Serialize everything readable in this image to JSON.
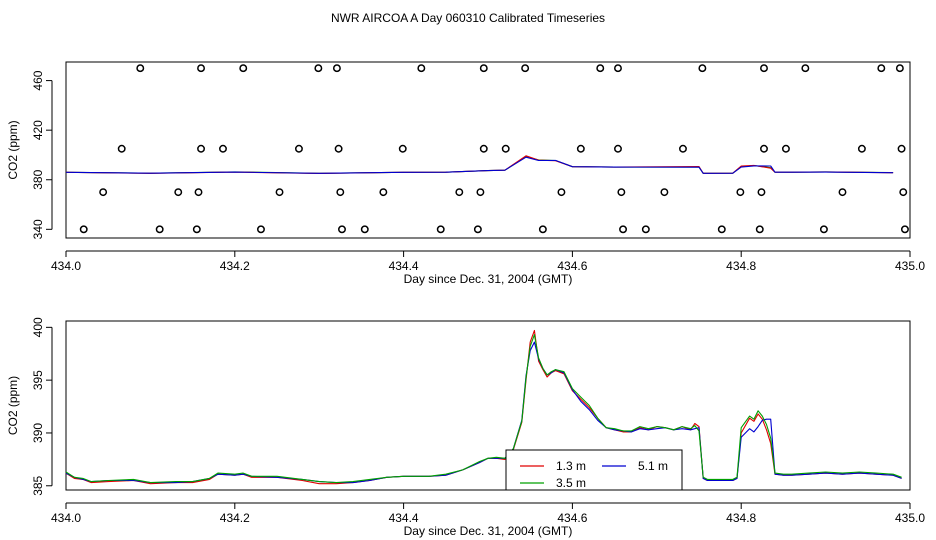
{
  "title": "NWR AIRCOA A  Day 060310  Calibrated Timeseries",
  "colors": {
    "red": "#e00000",
    "green": "#00a000",
    "blue": "#0000d0",
    "frame": "#000000"
  },
  "chart_data": [
    {
      "type": "scatter",
      "xlabel": "Day since Dec. 31, 2004 (GMT)",
      "ylabel": "CO2 (ppm)",
      "xlim": [
        434.0,
        435.0
      ],
      "ylim": [
        333,
        475
      ],
      "xticks": [
        "434.0",
        "434.2",
        "434.4",
        "434.6",
        "434.8",
        "435.0"
      ],
      "yticks": [
        "340",
        "380",
        "420",
        "460"
      ],
      "tick_values": [
        340,
        380,
        420,
        460
      ],
      "x_tick_values": [
        434.0,
        434.2,
        434.4,
        434.6,
        434.8,
        435.0
      ],
      "reference_points": [
        {
          "x": 434.088,
          "y": 470
        },
        {
          "x": 434.16,
          "y": 470
        },
        {
          "x": 434.21,
          "y": 470
        },
        {
          "x": 434.299,
          "y": 470
        },
        {
          "x": 434.321,
          "y": 470
        },
        {
          "x": 434.421,
          "y": 470
        },
        {
          "x": 434.495,
          "y": 470
        },
        {
          "x": 434.544,
          "y": 470
        },
        {
          "x": 434.633,
          "y": 470
        },
        {
          "x": 434.654,
          "y": 470
        },
        {
          "x": 434.754,
          "y": 470
        },
        {
          "x": 434.827,
          "y": 470
        },
        {
          "x": 434.876,
          "y": 470
        },
        {
          "x": 434.966,
          "y": 470
        },
        {
          "x": 434.988,
          "y": 470
        },
        {
          "x": 434.066,
          "y": 405
        },
        {
          "x": 434.16,
          "y": 405
        },
        {
          "x": 434.186,
          "y": 405
        },
        {
          "x": 434.276,
          "y": 405
        },
        {
          "x": 434.323,
          "y": 405
        },
        {
          "x": 434.399,
          "y": 405
        },
        {
          "x": 434.495,
          "y": 405
        },
        {
          "x": 434.521,
          "y": 405
        },
        {
          "x": 434.61,
          "y": 405
        },
        {
          "x": 434.654,
          "y": 405
        },
        {
          "x": 434.731,
          "y": 405
        },
        {
          "x": 434.827,
          "y": 405
        },
        {
          "x": 434.853,
          "y": 405
        },
        {
          "x": 434.943,
          "y": 405
        },
        {
          "x": 434.99,
          "y": 405
        },
        {
          "x": 434.044,
          "y": 370
        },
        {
          "x": 434.133,
          "y": 370
        },
        {
          "x": 434.157,
          "y": 370
        },
        {
          "x": 434.253,
          "y": 370
        },
        {
          "x": 434.325,
          "y": 370
        },
        {
          "x": 434.376,
          "y": 370
        },
        {
          "x": 434.466,
          "y": 370
        },
        {
          "x": 434.491,
          "y": 370
        },
        {
          "x": 434.587,
          "y": 370
        },
        {
          "x": 434.658,
          "y": 370
        },
        {
          "x": 434.709,
          "y": 370
        },
        {
          "x": 434.799,
          "y": 370
        },
        {
          "x": 434.824,
          "y": 370
        },
        {
          "x": 434.92,
          "y": 370
        },
        {
          "x": 434.992,
          "y": 370
        },
        {
          "x": 434.021,
          "y": 340
        },
        {
          "x": 434.111,
          "y": 340
        },
        {
          "x": 434.155,
          "y": 340
        },
        {
          "x": 434.231,
          "y": 340
        },
        {
          "x": 434.327,
          "y": 340
        },
        {
          "x": 434.354,
          "y": 340
        },
        {
          "x": 434.444,
          "y": 340
        },
        {
          "x": 434.488,
          "y": 340
        },
        {
          "x": 434.565,
          "y": 340
        },
        {
          "x": 434.66,
          "y": 340
        },
        {
          "x": 434.687,
          "y": 340
        },
        {
          "x": 434.777,
          "y": 340
        },
        {
          "x": 434.822,
          "y": 340
        },
        {
          "x": 434.898,
          "y": 340
        },
        {
          "x": 434.994,
          "y": 340
        }
      ],
      "series": [
        {
          "color": "green",
          "x": [
            434.0,
            434.1,
            434.2,
            434.3,
            434.4,
            434.45,
            434.5,
            434.52,
            434.545,
            434.56,
            434.58,
            434.6,
            434.65,
            434.75,
            434.755,
            434.79,
            434.8,
            434.815,
            434.835,
            434.84,
            434.86,
            434.9,
            434.98
          ],
          "y": [
            386,
            385.3,
            386.3,
            385.2,
            386,
            386.1,
            387.4,
            387.7,
            398.5,
            396,
            395.5,
            390.5,
            390.2,
            390.2,
            385.2,
            385.3,
            390.5,
            391.5,
            389.7,
            386.1,
            386.1,
            386.3,
            385.8
          ]
        },
        {
          "color": "red",
          "x": [
            434.0,
            434.1,
            434.2,
            434.3,
            434.4,
            434.45,
            434.5,
            434.52,
            434.545,
            434.56,
            434.58,
            434.6,
            434.65,
            434.75,
            434.755,
            434.79,
            434.8,
            434.815,
            434.835,
            434.84,
            434.86,
            434.9,
            434.98
          ],
          "y": [
            386,
            385.2,
            386.2,
            385.1,
            386,
            386.1,
            387.4,
            387.7,
            399.3,
            395.8,
            395.4,
            390.5,
            390.2,
            390.6,
            385.2,
            385.3,
            391,
            391.6,
            389.3,
            386.1,
            386.1,
            386.3,
            385.7
          ]
        },
        {
          "color": "blue",
          "x": [
            434.0,
            434.1,
            434.2,
            434.3,
            434.4,
            434.45,
            434.5,
            434.52,
            434.545,
            434.56,
            434.58,
            434.6,
            434.65,
            434.75,
            434.755,
            434.79,
            434.8,
            434.815,
            434.835,
            434.84,
            434.86,
            434.9,
            434.98
          ],
          "y": [
            386,
            385.3,
            386.2,
            385.2,
            386,
            386.1,
            387.4,
            387.7,
            398.2,
            395.5,
            395.6,
            390.5,
            390.2,
            390.1,
            385.2,
            385.3,
            390.2,
            391.2,
            391.1,
            386.1,
            386.1,
            386.2,
            385.7
          ]
        }
      ]
    },
    {
      "type": "line",
      "xlabel": "Day since Dec. 31, 2004 (GMT)",
      "ylabel": "CO2 (ppm)",
      "xlim": [
        434.0,
        435.0
      ],
      "ylim": [
        384.6,
        400.6
      ],
      "xticks": [
        "434.0",
        "434.2",
        "434.4",
        "434.6",
        "434.8",
        "435.0"
      ],
      "x_tick_values": [
        434.0,
        434.2,
        434.4,
        434.6,
        434.8,
        435.0
      ],
      "yticks": [
        "385",
        "390",
        "395",
        "400"
      ],
      "tick_values": [
        385,
        390,
        395,
        400
      ],
      "legend": {
        "position": "bottom-center",
        "entries": [
          {
            "label": "1.3 m",
            "color": "red"
          },
          {
            "label": "5.1 m",
            "color": "blue"
          },
          {
            "label": "3.5 m",
            "color": "green"
          }
        ]
      },
      "series": [
        {
          "name": "1.3 m",
          "color": "red",
          "x": [
            434.0,
            434.01,
            434.02,
            434.03,
            434.05,
            434.08,
            434.1,
            434.13,
            434.15,
            434.17,
            434.18,
            434.2,
            434.21,
            434.22,
            434.25,
            434.28,
            434.3,
            434.32,
            434.34,
            434.36,
            434.38,
            434.4,
            434.43,
            434.45,
            434.47,
            434.49,
            434.5,
            434.51,
            434.52,
            434.53,
            434.54,
            434.545,
            434.55,
            434.555,
            434.56,
            434.565,
            434.57,
            434.575,
            434.58,
            434.59,
            434.6,
            434.61,
            434.62,
            434.63,
            434.64,
            434.65,
            434.66,
            434.67,
            434.68,
            434.69,
            434.7,
            434.71,
            434.72,
            434.73,
            434.74,
            434.745,
            434.75,
            434.755,
            434.76,
            434.77,
            434.78,
            434.79,
            434.795,
            434.8,
            434.81,
            434.815,
            434.82,
            434.825,
            434.83,
            434.835,
            434.84,
            434.85,
            434.86,
            434.88,
            434.9,
            434.92,
            434.94,
            434.96,
            434.98,
            434.99
          ],
          "y": [
            386.2,
            385.7,
            385.6,
            385.3,
            385.4,
            385.5,
            385.2,
            385.3,
            385.3,
            385.6,
            386.1,
            386.0,
            386.1,
            385.8,
            385.8,
            385.5,
            385.2,
            385.2,
            385.3,
            385.5,
            385.8,
            385.9,
            385.9,
            386.0,
            386.5,
            387.2,
            387.6,
            387.6,
            387.5,
            388.4,
            391.0,
            395.0,
            398.6,
            399.7,
            396.8,
            396.0,
            395.3,
            395.7,
            395.9,
            395.6,
            394.0,
            393.2,
            392.4,
            391.4,
            390.5,
            390.3,
            390.1,
            390.1,
            390.5,
            390.3,
            390.6,
            390.5,
            390.3,
            390.6,
            390.3,
            390.9,
            390.6,
            385.7,
            385.5,
            385.5,
            385.5,
            385.5,
            385.7,
            390.0,
            391.4,
            391.1,
            391.8,
            391.3,
            390.3,
            389.0,
            386.1,
            386.0,
            386.0,
            386.1,
            386.2,
            386.1,
            386.2,
            386.1,
            386.0,
            385.7
          ]
        },
        {
          "name": "5.1 m",
          "color": "blue",
          "x": [
            434.0,
            434.01,
            434.02,
            434.03,
            434.05,
            434.08,
            434.1,
            434.13,
            434.15,
            434.17,
            434.18,
            434.2,
            434.21,
            434.22,
            434.25,
            434.28,
            434.3,
            434.32,
            434.34,
            434.36,
            434.38,
            434.4,
            434.43,
            434.45,
            434.47,
            434.49,
            434.5,
            434.51,
            434.52,
            434.53,
            434.54,
            434.545,
            434.55,
            434.555,
            434.56,
            434.565,
            434.57,
            434.575,
            434.58,
            434.59,
            434.6,
            434.61,
            434.62,
            434.63,
            434.64,
            434.65,
            434.66,
            434.67,
            434.68,
            434.69,
            434.7,
            434.71,
            434.72,
            434.73,
            434.74,
            434.745,
            434.75,
            434.755,
            434.76,
            434.77,
            434.78,
            434.79,
            434.795,
            434.8,
            434.81,
            434.815,
            434.82,
            434.825,
            434.83,
            434.835,
            434.84,
            434.85,
            434.86,
            434.88,
            434.9,
            434.92,
            434.94,
            434.96,
            434.98,
            434.99
          ],
          "y": [
            386.2,
            385.8,
            385.6,
            385.4,
            385.5,
            385.5,
            385.3,
            385.3,
            385.4,
            385.7,
            386.1,
            386.0,
            386.1,
            385.9,
            385.8,
            385.6,
            385.4,
            385.3,
            385.3,
            385.5,
            385.8,
            385.9,
            385.9,
            386.0,
            386.5,
            387.2,
            387.6,
            387.6,
            387.6,
            388.5,
            391.2,
            395.4,
            397.8,
            398.6,
            397.0,
            396.1,
            395.5,
            395.7,
            396.0,
            395.7,
            394.1,
            393.0,
            392.2,
            391.2,
            390.5,
            390.3,
            390.2,
            390.1,
            390.4,
            390.3,
            390.4,
            390.5,
            390.3,
            390.4,
            390.3,
            390.4,
            390.5,
            385.7,
            385.5,
            385.5,
            385.5,
            385.5,
            385.7,
            389.6,
            390.4,
            390.1,
            390.6,
            391.2,
            391.3,
            391.3,
            386.1,
            386.0,
            386.0,
            386.1,
            386.2,
            386.1,
            386.2,
            386.1,
            386.0,
            385.7
          ]
        },
        {
          "name": "3.5 m",
          "color": "green",
          "x": [
            434.0,
            434.01,
            434.02,
            434.03,
            434.05,
            434.08,
            434.1,
            434.13,
            434.15,
            434.17,
            434.18,
            434.2,
            434.21,
            434.22,
            434.25,
            434.28,
            434.3,
            434.32,
            434.34,
            434.36,
            434.38,
            434.4,
            434.43,
            434.45,
            434.47,
            434.49,
            434.5,
            434.51,
            434.52,
            434.53,
            434.54,
            434.545,
            434.55,
            434.555,
            434.56,
            434.565,
            434.57,
            434.575,
            434.58,
            434.59,
            434.6,
            434.61,
            434.62,
            434.63,
            434.64,
            434.65,
            434.66,
            434.67,
            434.68,
            434.69,
            434.7,
            434.71,
            434.72,
            434.73,
            434.74,
            434.745,
            434.75,
            434.755,
            434.76,
            434.77,
            434.78,
            434.79,
            434.795,
            434.8,
            434.81,
            434.815,
            434.82,
            434.825,
            434.83,
            434.835,
            434.84,
            434.85,
            434.86,
            434.88,
            434.9,
            434.92,
            434.94,
            434.96,
            434.98,
            434.99
          ],
          "y": [
            386.3,
            385.8,
            385.7,
            385.4,
            385.5,
            385.6,
            385.3,
            385.4,
            385.4,
            385.7,
            386.2,
            386.1,
            386.2,
            385.9,
            385.9,
            385.6,
            385.4,
            385.3,
            385.4,
            385.6,
            385.8,
            385.9,
            385.9,
            386.1,
            386.5,
            387.3,
            387.6,
            387.7,
            387.6,
            388.5,
            391.1,
            395.2,
            398.2,
            399.3,
            397.1,
            396.1,
            395.5,
            395.8,
            396.0,
            395.8,
            394.2,
            393.4,
            392.6,
            391.4,
            390.5,
            390.4,
            390.2,
            390.2,
            390.6,
            390.4,
            390.6,
            390.5,
            390.3,
            390.6,
            390.4,
            390.7,
            390.2,
            385.8,
            385.6,
            385.6,
            385.6,
            385.6,
            385.8,
            390.5,
            391.6,
            391.3,
            392.1,
            391.6,
            390.8,
            389.5,
            386.2,
            386.1,
            386.1,
            386.2,
            386.3,
            386.2,
            386.3,
            386.2,
            386.1,
            385.8
          ]
        }
      ]
    }
  ]
}
